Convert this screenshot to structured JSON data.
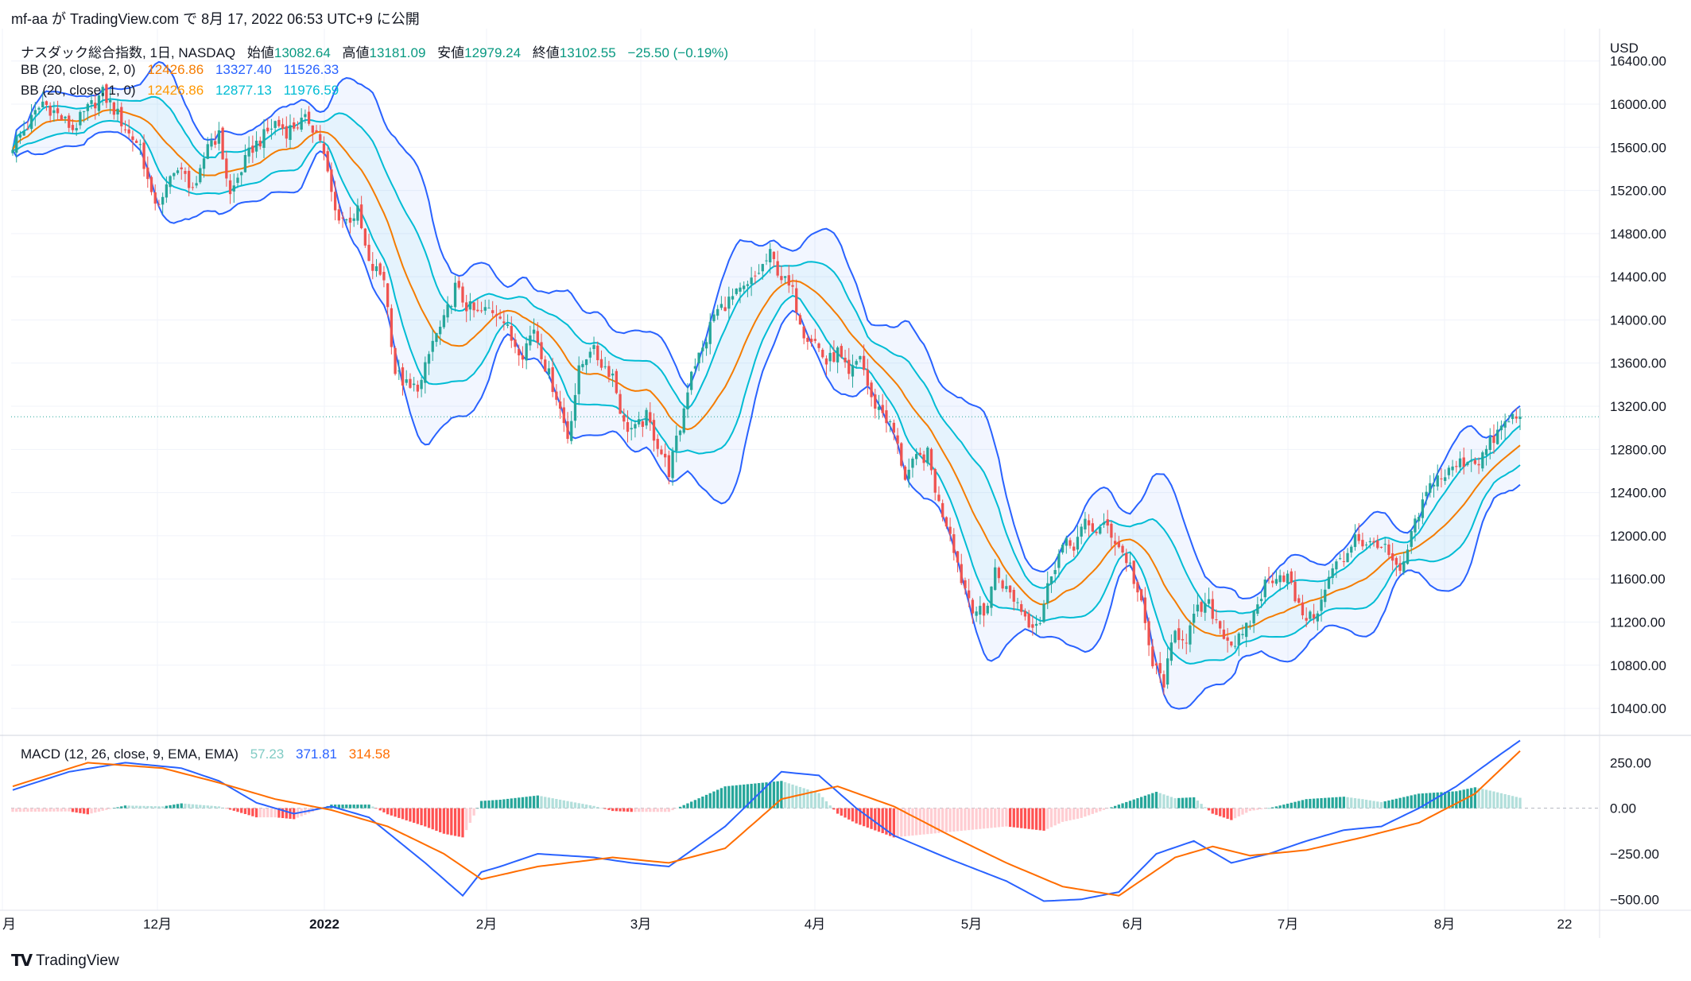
{
  "header": {
    "publisher": "mf-aa が TradingView.com で 8月 17, 2022 06:53 UTC+9 に公開"
  },
  "legend": {
    "symbol": "ナスダック総合指数, 1日, NASDAQ",
    "open_label": "始値",
    "open": "13082.64",
    "high_label": "高値",
    "high": "13181.09",
    "low_label": "安値",
    "low": "12979.24",
    "close_label": "終値",
    "close": "13102.55",
    "change": "−25.50 (−0.19%)",
    "bb1_label": "BB (20, close, 2, 0)",
    "bb1_basis": "12426.86",
    "bb1_upper": "13327.40",
    "bb1_lower": "11526.33",
    "bb2_label": "BB (20, close, 1, 0)",
    "bb2_basis": "12426.86",
    "bb2_upper": "12877.13",
    "bb2_lower": "11976.59",
    "macd_label": "MACD (12, 26, close, 9, EMA, EMA)",
    "macd_hist": "57.23",
    "macd_line": "371.81",
    "macd_signal": "314.58"
  },
  "brand": {
    "name": "TradingView"
  },
  "colors": {
    "up": "#26a69a",
    "down": "#ef5350",
    "bb2_band": "#2962ff",
    "bb1_band": "#00bcd4",
    "basis": "#f57c00",
    "macd_line": "#2962ff",
    "signal_line": "#ff6d00"
  },
  "chart_data": {
    "type": "candlestick",
    "currency": "USD",
    "price_ylim": [
      10150,
      16700
    ],
    "price_ticks": [
      "16400.00",
      "16000.00",
      "15600.00",
      "15200.00",
      "14800.00",
      "14400.00",
      "14000.00",
      "13600.00",
      "13200.00",
      "12800.00",
      "12400.00",
      "12000.00",
      "11600.00",
      "11200.00",
      "10800.00",
      "10400.00"
    ],
    "macd_ylim": [
      -560,
      400
    ],
    "macd_ticks": [
      "250.00",
      "0.00",
      "−250.00",
      "−500.00"
    ],
    "x_ticks": [
      "月",
      "12月",
      "2022",
      "2月",
      "3月",
      "4月",
      "5月",
      "6月",
      "7月",
      "8月",
      "22"
    ],
    "last_close": 13102.55,
    "close_anchors": [
      [
        0,
        15620
      ],
      [
        4,
        15800
      ],
      [
        8,
        16020
      ],
      [
        12,
        15900
      ],
      [
        16,
        15770
      ],
      [
        20,
        15950
      ],
      [
        24,
        16100
      ],
      [
        28,
        15900
      ],
      [
        31,
        15720
      ],
      [
        34,
        15620
      ],
      [
        37,
        15120
      ],
      [
        40,
        15100
      ],
      [
        43,
        15420
      ],
      [
        46,
        15320
      ],
      [
        49,
        15200
      ],
      [
        52,
        15650
      ],
      [
        55,
        15700
      ],
      [
        58,
        15150
      ],
      [
        61,
        15400
      ],
      [
        64,
        15600
      ],
      [
        67,
        15700
      ],
      [
        70,
        15830
      ],
      [
        73,
        15750
      ],
      [
        76,
        15820
      ],
      [
        79,
        15850
      ],
      [
        82,
        15680
      ],
      [
        86,
        15000
      ],
      [
        89,
        14920
      ],
      [
        92,
        15000
      ],
      [
        95,
        14500
      ],
      [
        99,
        14400
      ],
      [
        102,
        13520
      ],
      [
        106,
        13350
      ],
      [
        109,
        13420
      ],
      [
        112,
        13800
      ],
      [
        115,
        13980
      ],
      [
        118,
        14300
      ],
      [
        121,
        14130
      ],
      [
        124,
        14050
      ],
      [
        127,
        14100
      ],
      [
        130,
        14070
      ],
      [
        133,
        13820
      ],
      [
        136,
        13700
      ],
      [
        139,
        13930
      ],
      [
        142,
        13580
      ],
      [
        145,
        13300
      ],
      [
        148,
        12920
      ],
      [
        151,
        13520
      ],
      [
        154,
        13750
      ],
      [
        157,
        13600
      ],
      [
        160,
        13500
      ],
      [
        163,
        13020
      ],
      [
        166,
        12980
      ],
      [
        169,
        13100
      ],
      [
        172,
        12850
      ],
      [
        175,
        12600
      ],
      [
        178,
        13000
      ],
      [
        181,
        13550
      ],
      [
        184,
        13720
      ],
      [
        187,
        14050
      ],
      [
        190,
        14150
      ],
      [
        193,
        14230
      ],
      [
        196,
        14300
      ],
      [
        199,
        14450
      ],
      [
        202,
        14600
      ],
      [
        205,
        14400
      ],
      [
        208,
        14250
      ],
      [
        211,
        13890
      ],
      [
        214,
        13800
      ],
      [
        217,
        13600
      ],
      [
        220,
        13700
      ],
      [
        223,
        13460
      ],
      [
        226,
        13680
      ],
      [
        229,
        13250
      ],
      [
        232,
        13150
      ],
      [
        235,
        12950
      ],
      [
        238,
        12550
      ],
      [
        241,
        12700
      ],
      [
        244,
        12750
      ],
      [
        247,
        12290
      ],
      [
        250,
        12050
      ],
      [
        253,
        11600
      ],
      [
        256,
        11350
      ],
      [
        259,
        11250
      ],
      [
        262,
        11680
      ],
      [
        265,
        11500
      ],
      [
        268,
        11380
      ],
      [
        271,
        11200
      ],
      [
        274,
        11220
      ],
      [
        277,
        11670
      ],
      [
        280,
        11900
      ],
      [
        283,
        11920
      ],
      [
        286,
        12100
      ],
      [
        289,
        12050
      ],
      [
        292,
        12080
      ],
      [
        295,
        11900
      ],
      [
        298,
        11720
      ],
      [
        301,
        11340
      ],
      [
        304,
        10800
      ],
      [
        307,
        10650
      ],
      [
        310,
        11100
      ],
      [
        313,
        11060
      ],
      [
        316,
        11300
      ],
      [
        319,
        11350
      ],
      [
        322,
        11150
      ],
      [
        325,
        11000
      ],
      [
        328,
        11050
      ],
      [
        331,
        11280
      ],
      [
        334,
        11550
      ],
      [
        337,
        11650
      ],
      [
        340,
        11620
      ],
      [
        343,
        11320
      ],
      [
        346,
        11230
      ],
      [
        349,
        11380
      ],
      [
        352,
        11700
      ],
      [
        355,
        11780
      ],
      [
        358,
        12020
      ],
      [
        361,
        11890
      ],
      [
        364,
        11950
      ],
      [
        367,
        11810
      ],
      [
        370,
        11620
      ],
      [
        373,
        11990
      ],
      [
        376,
        12300
      ],
      [
        379,
        12530
      ],
      [
        382,
        12560
      ],
      [
        385,
        12650
      ],
      [
        388,
        12710
      ],
      [
        391,
        12700
      ],
      [
        394,
        12850
      ],
      [
        397,
        13000
      ],
      [
        400,
        13100
      ],
      [
        402,
        13102.55
      ]
    ],
    "macd_anchors": [
      [
        0,
        100
      ],
      [
        15,
        200
      ],
      [
        30,
        250
      ],
      [
        45,
        220
      ],
      [
        55,
        150
      ],
      [
        65,
        30
      ],
      [
        75,
        -30
      ],
      [
        85,
        10
      ],
      [
        95,
        -50
      ],
      [
        110,
        -300
      ],
      [
        120,
        -480
      ],
      [
        125,
        -350
      ],
      [
        130,
        -320
      ],
      [
        140,
        -250
      ],
      [
        155,
        -270
      ],
      [
        165,
        -300
      ],
      [
        175,
        -320
      ],
      [
        190,
        -100
      ],
      [
        205,
        200
      ],
      [
        215,
        180
      ],
      [
        225,
        0
      ],
      [
        235,
        -150
      ],
      [
        250,
        -280
      ],
      [
        265,
        -400
      ],
      [
        275,
        -510
      ],
      [
        285,
        -500
      ],
      [
        295,
        -460
      ],
      [
        305,
        -250
      ],
      [
        315,
        -180
      ],
      [
        325,
        -300
      ],
      [
        335,
        -250
      ],
      [
        345,
        -180
      ],
      [
        355,
        -120
      ],
      [
        365,
        -100
      ],
      [
        375,
        0
      ],
      [
        385,
        120
      ],
      [
        395,
        270
      ],
      [
        402,
        371.81
      ]
    ],
    "signal_anchors": [
      [
        0,
        120
      ],
      [
        20,
        250
      ],
      [
        40,
        220
      ],
      [
        55,
        140
      ],
      [
        70,
        50
      ],
      [
        85,
        -10
      ],
      [
        100,
        -100
      ],
      [
        115,
        -250
      ],
      [
        125,
        -390
      ],
      [
        140,
        -320
      ],
      [
        160,
        -270
      ],
      [
        175,
        -300
      ],
      [
        190,
        -220
      ],
      [
        205,
        50
      ],
      [
        220,
        120
      ],
      [
        235,
        10
      ],
      [
        250,
        -150
      ],
      [
        265,
        -300
      ],
      [
        280,
        -430
      ],
      [
        295,
        -480
      ],
      [
        310,
        -270
      ],
      [
        320,
        -210
      ],
      [
        330,
        -260
      ],
      [
        345,
        -230
      ],
      [
        360,
        -160
      ],
      [
        375,
        -80
      ],
      [
        390,
        80
      ],
      [
        402,
        314.58
      ]
    ]
  }
}
